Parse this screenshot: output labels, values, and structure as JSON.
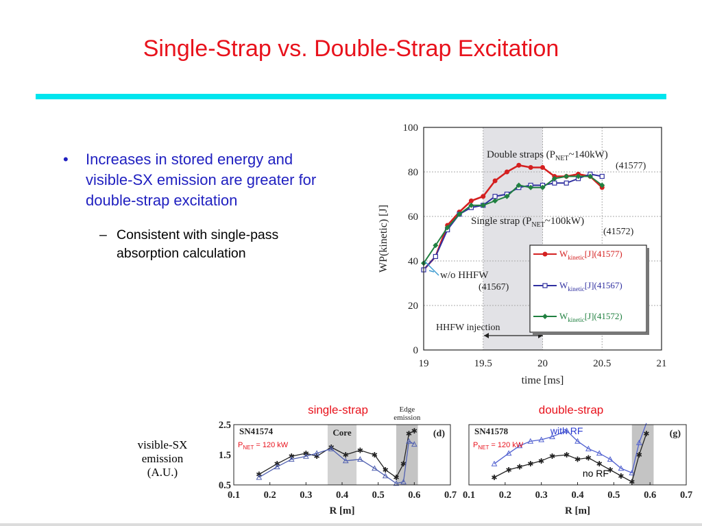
{
  "slide": {
    "title": "Single-Strap vs. Double-Strap Excitation",
    "accent_color": "#00e5ee",
    "title_color": "#e8121c"
  },
  "bullets": {
    "main": "Increases in stored energy and visible-SX emission are greater for double-strap excitation",
    "sub": "Consistent with single-pass absorption calculation"
  },
  "side_label": [
    "visible-SX",
    "emission",
    "(A.U.)"
  ],
  "chart_data": [
    {
      "type": "line",
      "xlabel": "time [ms]",
      "ylabel": "WP(kinetic) [J]",
      "xlim": [
        19,
        21
      ],
      "ylim": [
        0,
        100
      ],
      "xticks": [
        "19",
        "19.5",
        "20",
        "20.5",
        "21"
      ],
      "yticks": [
        "0",
        "20",
        "40",
        "60",
        "80",
        "100"
      ],
      "grid": true,
      "shaded_region": [
        19.5,
        20.0
      ],
      "legend_position": "right",
      "series": [
        {
          "name": "Wkinetic[J](41577)",
          "color": "#d42020",
          "x": [
            19.0,
            19.1,
            19.2,
            19.3,
            19.4,
            19.5,
            19.6,
            19.7,
            19.8,
            19.9,
            20.0,
            20.1,
            20.2,
            20.3,
            20.4,
            20.5
          ],
          "values": [
            36,
            42,
            56,
            62,
            67,
            69,
            76,
            80,
            83,
            82,
            82,
            78,
            78,
            79,
            78,
            73
          ]
        },
        {
          "name": "Wkinetic[J](41567)",
          "color": "#3030a0",
          "x": [
            19.0,
            19.1,
            19.2,
            19.3,
            19.4,
            19.5,
            19.6,
            19.7,
            19.8,
            19.9,
            20.0,
            20.1,
            20.2,
            20.3,
            20.4,
            20.5
          ],
          "values": [
            36,
            42,
            54,
            61,
            64,
            65,
            69,
            70,
            73,
            74,
            74,
            75,
            75,
            77,
            79,
            78
          ]
        },
        {
          "name": "Wkinetic[J](41572)",
          "color": "#208040",
          "x": [
            19.0,
            19.1,
            19.2,
            19.3,
            19.4,
            19.5,
            19.6,
            19.7,
            19.8,
            19.9,
            20.0,
            20.1,
            20.2,
            20.3,
            20.4,
            20.5
          ],
          "values": [
            39,
            47,
            55,
            61,
            65,
            65,
            67,
            69,
            74,
            73,
            73,
            77,
            78,
            78,
            78,
            74
          ]
        }
      ],
      "annotations": {
        "double_label": "Double straps (P",
        "double_sub": "NET",
        "double_rest": "~140kW)",
        "double_shot": "(41577)",
        "single_label": "Single strap (P",
        "single_sub": "NET",
        "single_rest": "~100kW)",
        "single_shot": "(41572)",
        "wo_label": "w/o HHFW",
        "wo_shot": "(41567)",
        "injection_label": "HHFW injection",
        "legend_prefix": "W",
        "legend_sub": "kinetic",
        "legend_suffixes": [
          "[J](41577)",
          "[J](41567)",
          "[J](41572)"
        ]
      }
    },
    {
      "type": "line",
      "shot": "SN41574",
      "panel_label": "(d)",
      "heading": "single-strap",
      "pnet_prefix": "P",
      "pnet_sub": "NET",
      "pnet_rest": " = 120 kW",
      "xlabel": "R [m]",
      "xlim": [
        0.1,
        0.7
      ],
      "ylim": [
        0.5,
        2.5
      ],
      "xticks": [
        "0.1",
        "0.2",
        "0.3",
        "0.4",
        "0.5",
        "0.6",
        "0.7"
      ],
      "yticks": [
        "0.5",
        "1.5",
        "2.5"
      ],
      "core_label": "Core",
      "core_region": [
        0.36,
        0.44
      ],
      "edge_label": [
        "Edge",
        "emission"
      ],
      "edge_region": [
        0.55,
        0.61
      ],
      "series": [
        {
          "color": "#222222",
          "x": [
            0.17,
            0.22,
            0.26,
            0.3,
            0.33,
            0.37,
            0.41,
            0.45,
            0.49,
            0.52,
            0.55,
            0.57,
            0.585,
            0.6
          ],
          "values": [
            0.85,
            1.2,
            1.45,
            1.55,
            1.45,
            1.75,
            1.5,
            1.65,
            1.5,
            1.0,
            0.75,
            1.2,
            2.2,
            2.3
          ]
        },
        {
          "color": "#5060b0",
          "x": [
            0.17,
            0.22,
            0.26,
            0.3,
            0.33,
            0.37,
            0.41,
            0.45,
            0.49,
            0.52,
            0.55,
            0.57,
            0.585,
            0.6
          ],
          "values": [
            0.75,
            1.1,
            1.35,
            1.45,
            1.55,
            1.7,
            1.3,
            1.35,
            1.05,
            0.8,
            0.55,
            0.6,
            1.95,
            1.85
          ]
        }
      ]
    },
    {
      "type": "line",
      "shot": "SN41578",
      "panel_label": "(g)",
      "heading": "double-strap",
      "pnet_prefix": "P",
      "pnet_sub": "NET",
      "pnet_rest": " = 120 kW",
      "xlabel": "R [m]",
      "xlim": [
        0.1,
        0.7
      ],
      "ylim": [
        0.5,
        2.5
      ],
      "xticks": [
        "0.1",
        "0.2",
        "0.3",
        "0.4",
        "0.5",
        "0.6",
        "0.7"
      ],
      "with_rf_label": "with RF",
      "no_rf_label": "no RF",
      "edge_region": [
        0.55,
        0.61
      ],
      "series": [
        {
          "name": "with RF",
          "color": "#5060d0",
          "x": [
            0.17,
            0.21,
            0.24,
            0.27,
            0.3,
            0.33,
            0.37,
            0.4,
            0.43,
            0.46,
            0.49,
            0.52,
            0.55,
            0.57,
            0.59
          ],
          "values": [
            1.2,
            1.55,
            1.8,
            1.95,
            2.0,
            2.1,
            2.3,
            1.95,
            1.7,
            1.55,
            1.35,
            1.05,
            0.9,
            1.9,
            2.9
          ]
        },
        {
          "name": "no RF",
          "color": "#222222",
          "x": [
            0.17,
            0.21,
            0.24,
            0.27,
            0.3,
            0.33,
            0.37,
            0.4,
            0.43,
            0.46,
            0.49,
            0.52,
            0.55,
            0.57,
            0.59
          ],
          "values": [
            0.75,
            1.0,
            1.1,
            1.2,
            1.3,
            1.45,
            1.5,
            1.35,
            1.4,
            1.2,
            1.0,
            0.8,
            0.6,
            1.5,
            2.2
          ]
        }
      ]
    }
  ]
}
